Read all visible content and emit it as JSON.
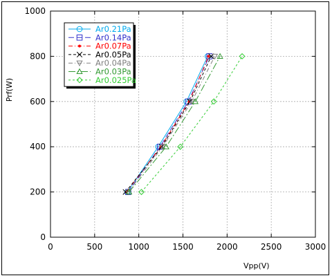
{
  "chart_data": {
    "type": "line",
    "title": "",
    "xlabel": "Vpp(V)",
    "ylabel": "Prf(W)",
    "xlim": [
      0,
      3000
    ],
    "ylim": [
      0,
      1000
    ],
    "x_ticks": [
      "0",
      "500",
      "1000",
      "1500",
      "2000",
      "2500",
      "3000"
    ],
    "y_ticks": [
      "0",
      "200",
      "400",
      "600",
      "800",
      "1000"
    ],
    "grid": true,
    "legend_position": "top-left",
    "series": [
      {
        "name": "Ar0.21Pa",
        "color": "#00aaee",
        "marker": "circle",
        "dash": "",
        "points": [
          [
            870,
            200
          ],
          [
            1220,
            400
          ],
          [
            1540,
            600
          ],
          [
            1780,
            800
          ]
        ]
      },
      {
        "name": "Ar0.14Pa",
        "color": "#3333cc",
        "marker": "square",
        "dash": "8,4",
        "points": [
          [
            880,
            200
          ],
          [
            1240,
            400
          ],
          [
            1560,
            600
          ],
          [
            1800,
            800
          ]
        ]
      },
      {
        "name": "Ar0.07Pa",
        "color": "#ff0000",
        "marker": "dot",
        "dash": "6,3,1,3",
        "points": [
          [
            860,
            200
          ],
          [
            1250,
            400
          ],
          [
            1570,
            600
          ],
          [
            1790,
            800
          ]
        ]
      },
      {
        "name": "Ar0.05Pa",
        "color": "#000000",
        "marker": "cross",
        "dash": "4,3",
        "points": [
          [
            850,
            200
          ],
          [
            1260,
            400
          ],
          [
            1580,
            600
          ],
          [
            1820,
            800
          ]
        ]
      },
      {
        "name": "Ar0.04Pa",
        "color": "#808080",
        "marker": "triangle-down",
        "dash": "6,3,1,3",
        "points": [
          [
            880,
            200
          ],
          [
            1270,
            400
          ],
          [
            1600,
            600
          ],
          [
            1860,
            800
          ]
        ]
      },
      {
        "name": "Ar0.03Pa",
        "color": "#339933",
        "marker": "triangle-up",
        "dash": "10,3,2,3",
        "points": [
          [
            890,
            200
          ],
          [
            1310,
            400
          ],
          [
            1640,
            600
          ],
          [
            1920,
            800
          ]
        ]
      },
      {
        "name": "Ar0.025Pa",
        "color": "#33cc33",
        "marker": "diamond",
        "dash": "3,3",
        "points": [
          [
            1030,
            200
          ],
          [
            1470,
            400
          ],
          [
            1850,
            600
          ],
          [
            2170,
            800
          ]
        ]
      }
    ]
  }
}
